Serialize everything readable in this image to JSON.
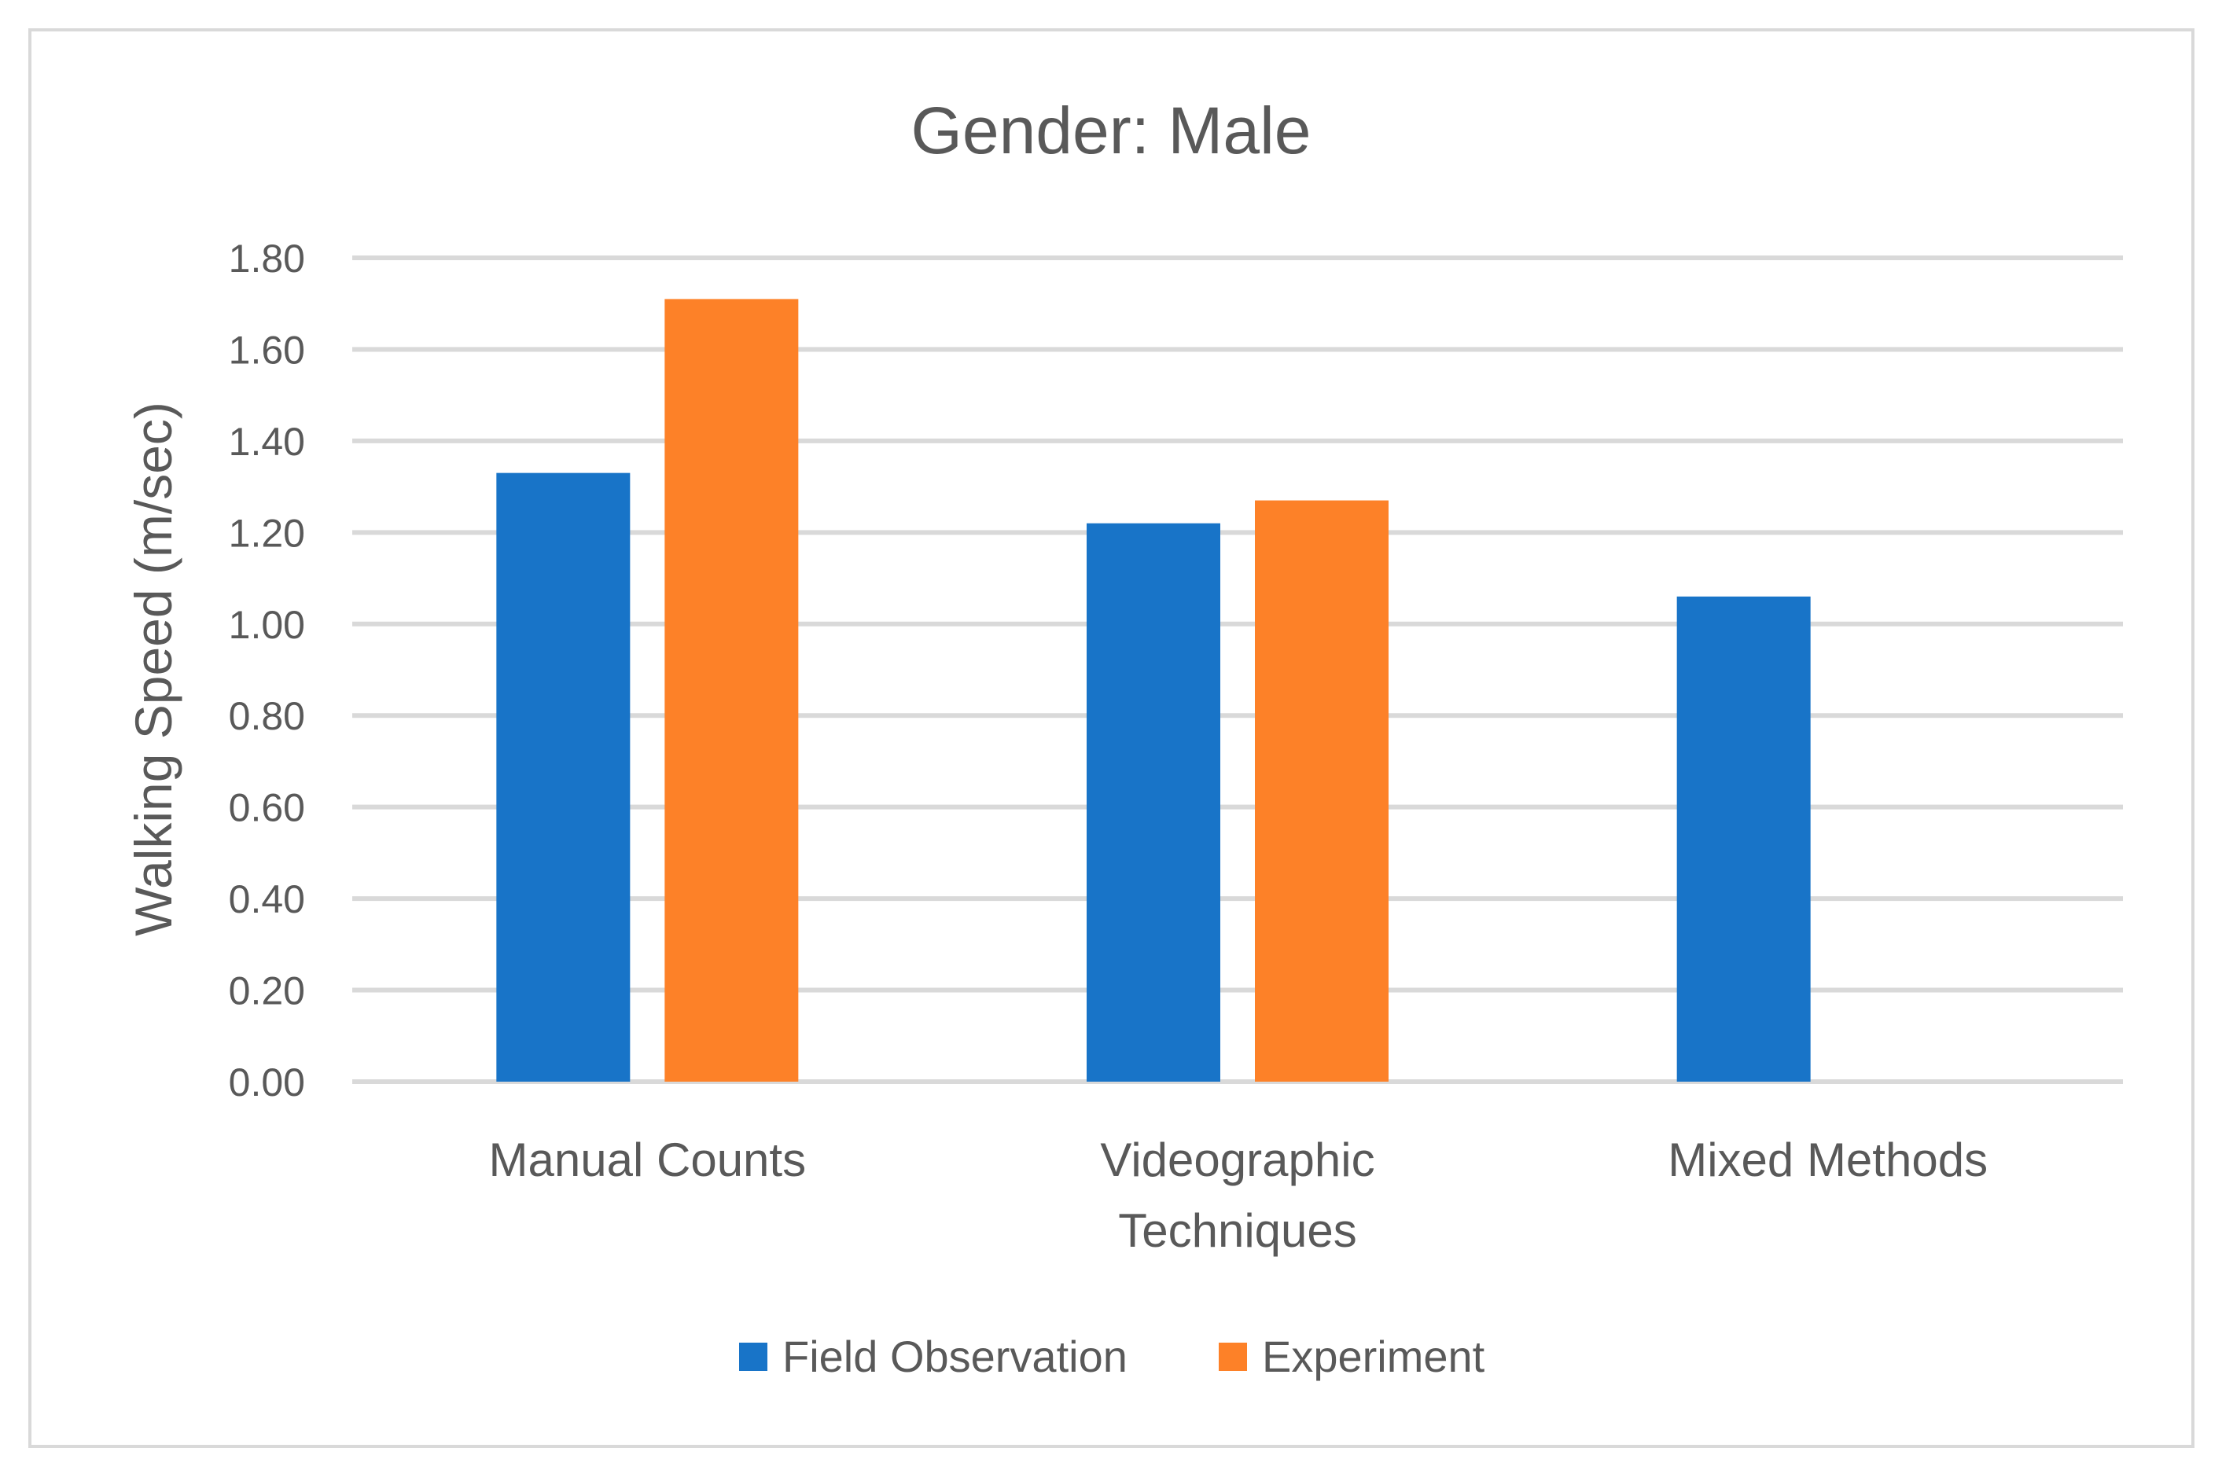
{
  "chart_data": {
    "type": "bar",
    "title": "Gender: Male",
    "xlabel": "",
    "ylabel": "Walking Speed (m/sec)",
    "ylim": [
      0,
      1.8
    ],
    "yticks": [
      "0.00",
      "0.20",
      "0.40",
      "0.60",
      "0.80",
      "1.00",
      "1.20",
      "1.40",
      "1.60",
      "1.80"
    ],
    "ytick_values": [
      0,
      0.2,
      0.4,
      0.6,
      0.8,
      1.0,
      1.2,
      1.4,
      1.6,
      1.8
    ],
    "grid": true,
    "legend_position": "bottom",
    "categories": [
      [
        "Manual Counts"
      ],
      [
        "Videographic",
        "Techniques"
      ],
      [
        "Mixed Methods"
      ]
    ],
    "series": [
      {
        "name": "Field Observation",
        "color": "#1874c8",
        "values": [
          1.33,
          1.22,
          1.06
        ]
      },
      {
        "name": "Experiment",
        "color": "#fd8128",
        "values": [
          1.71,
          1.27,
          null
        ]
      }
    ]
  }
}
